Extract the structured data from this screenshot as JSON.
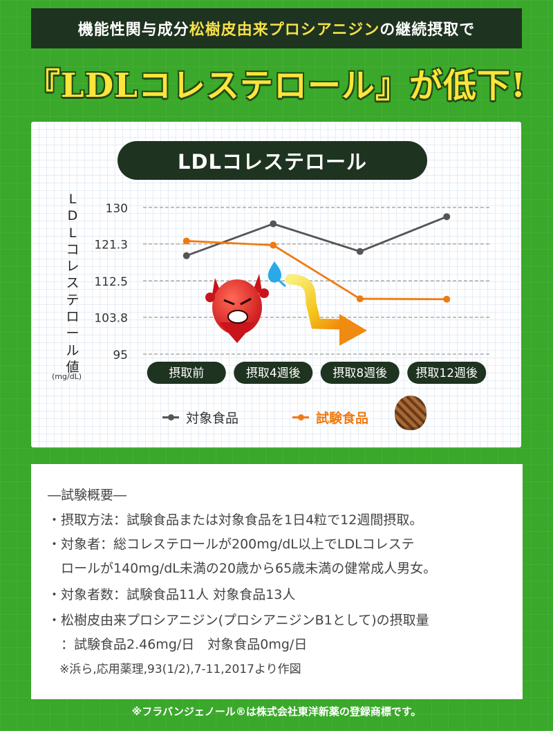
{
  "banner": {
    "prefix": "機能性関与成分 ",
    "highlight": "松樹皮由来プロシアニジン",
    "suffix": "の継続摂取で"
  },
  "headline": "『LDLコレステロール』が低下!",
  "chart_title": "LDLコレステロール",
  "chart_data": {
    "type": "line",
    "title": "LDLコレステロール",
    "ylabel": "LDLコレステロール値",
    "yunit": "(mg/dL)",
    "ylim": [
      95,
      130
    ],
    "yticks": [
      "130",
      "121.3",
      "112.5",
      "103.8",
      "95"
    ],
    "ytick_values": [
      130,
      121.3,
      112.5,
      103.8,
      95
    ],
    "categories": [
      "摂取前",
      "摂取4週後",
      "摂取8週後",
      "摂取12週後"
    ],
    "series": [
      {
        "name": "対象食品",
        "color": "#555555",
        "values": [
          118.5,
          126.1,
          119.5,
          127.8
        ]
      },
      {
        "name": "試験食品",
        "color": "#f07a12",
        "values": [
          122.0,
          121.0,
          108.2,
          108.1
        ]
      }
    ],
    "grid": true,
    "legend": "bottom"
  },
  "colors": {
    "accent": "#f07a12",
    "dark": "#1e3320",
    "headline": "#ffe53a"
  },
  "notes": {
    "heading": "―試験概要―",
    "lines": [
      "・摂取方法：試験食品または対象食品を1日4粒で12週間摂取。",
      "・対象者：総コレステロールが200mg/dL以上でLDLコレステ",
      "　ロールが140mg/dL未満の20歳から65歳未満の健常成人男女。",
      "・対象者数：試験食品11人 対象食品13人",
      "・松樹皮由来プロシアニジン(プロシアニジンB1として)の摂取量",
      "　：試験食品2.46mg/日　対象食品0mg/日",
      "　※浜ら,応用薬理,93(1/2),7-11,2017より作図"
    ]
  },
  "footer": "※フラバンジェノール®は株式会社東洋新薬の登録商標です。",
  "icons": [
    "devil-icon",
    "sweat-drop-icon",
    "down-arrow-icon",
    "pine-cone-icon"
  ]
}
